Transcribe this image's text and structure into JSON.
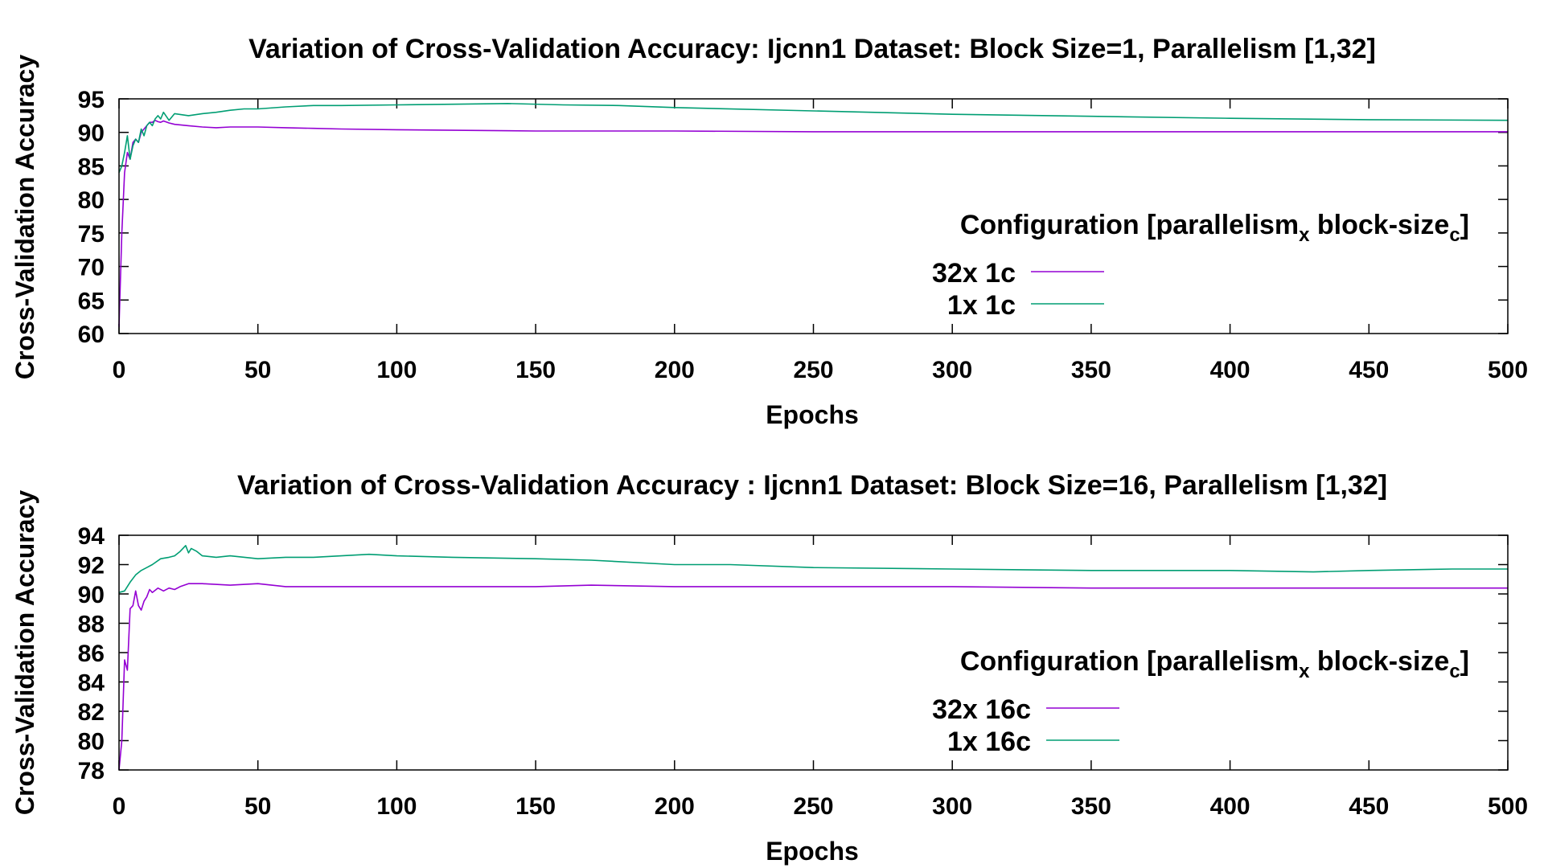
{
  "chart_data": [
    {
      "type": "line",
      "title": "Variation of Cross-Validation Accuracy: Ijcnn1 Dataset: Block Size=1, Parallelism [1,32]",
      "xlabel": "Epochs",
      "ylabel": "Cross-Validation Accuracy",
      "xlim": [
        0,
        500
      ],
      "ylim": [
        60,
        95
      ],
      "xticks": [
        0,
        50,
        100,
        150,
        200,
        250,
        300,
        350,
        400,
        450,
        500
      ],
      "yticks": [
        60,
        65,
        70,
        75,
        80,
        85,
        90,
        95
      ],
      "grid": false,
      "legend": {
        "title_main": "Configuration [parallelism",
        "title_sub1": "x",
        "title_mid": " block-size",
        "title_sub2": "c",
        "title_end": "]",
        "placement": "right"
      },
      "series": [
        {
          "name": "32x 1c",
          "color": "#9400d3",
          "x": [
            0,
            1,
            2,
            3,
            4,
            5,
            6,
            7,
            8,
            9,
            10,
            11,
            12,
            13,
            14,
            15,
            16,
            18,
            20,
            25,
            30,
            35,
            40,
            50,
            60,
            70,
            80,
            100,
            150,
            200,
            250,
            300,
            350,
            400,
            450,
            500
          ],
          "y": [
            61,
            75,
            84,
            87,
            86,
            88.5,
            89,
            88.5,
            90,
            90.5,
            91,
            91.5,
            91.5,
            91.8,
            91.6,
            91.5,
            91.7,
            91.4,
            91.2,
            91,
            90.8,
            90.7,
            90.8,
            90.8,
            90.7,
            90.6,
            90.5,
            90.4,
            90.2,
            90.2,
            90.1,
            90.1,
            90.1,
            90.1,
            90.1,
            90.1
          ]
        },
        {
          "name": "1x 1c",
          "color": "#009e73",
          "x": [
            0,
            1,
            2,
            3,
            4,
            5,
            6,
            7,
            8,
            9,
            10,
            11,
            12,
            13,
            14,
            15,
            16,
            18,
            20,
            25,
            30,
            35,
            40,
            45,
            50,
            60,
            70,
            80,
            100,
            120,
            140,
            160,
            180,
            200,
            250,
            300,
            350,
            400,
            450,
            500
          ],
          "y": [
            84,
            85,
            87,
            89.5,
            86,
            88,
            89,
            88.5,
            90.5,
            89.5,
            91,
            91.5,
            91,
            92,
            92.5,
            92,
            93,
            91.8,
            92.8,
            92.5,
            92.8,
            93,
            93.3,
            93.5,
            93.5,
            93.8,
            94,
            94,
            94.1,
            94.2,
            94.3,
            94.1,
            94,
            93.7,
            93.2,
            92.7,
            92.4,
            92.1,
            91.9,
            91.8
          ]
        }
      ]
    },
    {
      "type": "line",
      "title": "Variation of Cross-Validation Accuracy : Ijcnn1 Dataset: Block Size=16, Parallelism [1,32]",
      "xlabel": "Epochs",
      "ylabel": "Cross-Validation Accuracy",
      "xlim": [
        0,
        500
      ],
      "ylim": [
        78,
        94
      ],
      "xticks": [
        0,
        50,
        100,
        150,
        200,
        250,
        300,
        350,
        400,
        450,
        500
      ],
      "yticks": [
        78,
        80,
        82,
        84,
        86,
        88,
        90,
        92,
        94
      ],
      "grid": false,
      "legend": {
        "title_main": "Configuration [parallelism",
        "title_sub1": "x",
        "title_mid": " block-size",
        "title_sub2": "c",
        "title_end": "]",
        "placement": "right"
      },
      "series": [
        {
          "name": "32x 16c",
          "color": "#9400d3",
          "x": [
            0,
            1,
            2,
            3,
            4,
            5,
            6,
            7,
            8,
            9,
            10,
            11,
            12,
            14,
            16,
            18,
            20,
            22,
            25,
            30,
            40,
            50,
            60,
            70,
            80,
            100,
            120,
            150,
            170,
            200,
            250,
            300,
            350,
            400,
            450,
            500
          ],
          "y": [
            78,
            80,
            85.5,
            84.8,
            89,
            89.2,
            90.2,
            89.2,
            88.9,
            89.5,
            89.8,
            90.3,
            90.1,
            90.4,
            90.2,
            90.4,
            90.3,
            90.5,
            90.7,
            90.7,
            90.6,
            90.7,
            90.5,
            90.5,
            90.5,
            90.5,
            90.5,
            90.5,
            90.6,
            90.5,
            90.5,
            90.5,
            90.4,
            90.4,
            90.4,
            90.4
          ]
        },
        {
          "name": "1x 16c",
          "color": "#009e73",
          "x": [
            0,
            2,
            4,
            6,
            8,
            10,
            12,
            15,
            18,
            20,
            22,
            24,
            25,
            26,
            28,
            30,
            35,
            40,
            50,
            60,
            70,
            80,
            90,
            100,
            120,
            150,
            170,
            200,
            220,
            250,
            300,
            350,
            400,
            430,
            450,
            480,
            500
          ],
          "y": [
            90.1,
            90.2,
            90.8,
            91.3,
            91.6,
            91.8,
            92,
            92.4,
            92.5,
            92.6,
            92.9,
            93.3,
            92.8,
            93.1,
            92.9,
            92.6,
            92.5,
            92.6,
            92.4,
            92.5,
            92.5,
            92.6,
            92.7,
            92.6,
            92.5,
            92.4,
            92.3,
            92,
            92,
            91.8,
            91.7,
            91.6,
            91.6,
            91.5,
            91.6,
            91.7,
            91.7
          ]
        }
      ]
    }
  ]
}
